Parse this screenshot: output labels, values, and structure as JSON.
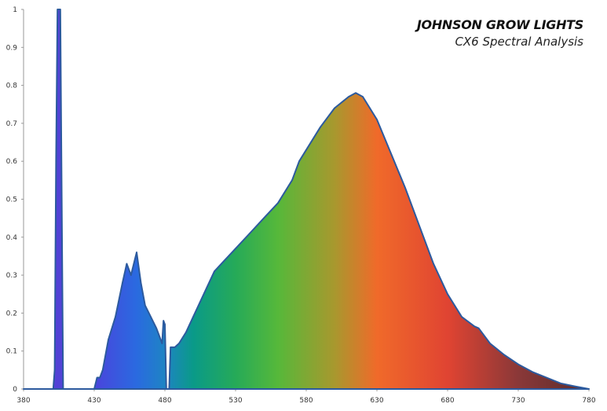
{
  "chart_data": {
    "type": "area",
    "title": "JOHNSON GROW LIGHTS",
    "subtitle": "CX6 Spectral Analysis",
    "xlabel": "",
    "ylabel": "",
    "xlim": [
      380,
      780
    ],
    "ylim": [
      0,
      1
    ],
    "x_ticks": [
      "380",
      "430",
      "480",
      "530",
      "580",
      "630",
      "680",
      "730",
      "780"
    ],
    "y_ticks": [
      "0",
      "0.1",
      "0.2",
      "0.3",
      "0.4",
      "0.5",
      "0.6",
      "0.7",
      "0.8",
      "0.9",
      "1"
    ],
    "grid": false,
    "legend": "none",
    "fill": "spectral gradient",
    "outline_color": "#2c5a9e",
    "series": [
      {
        "x": [
          380,
          401,
          402,
          403,
          404,
          406,
          407,
          408,
          430,
          432,
          434,
          436,
          440,
          445,
          450,
          453,
          456,
          458,
          460,
          463,
          466,
          470,
          474,
          478,
          479,
          480,
          481,
          483,
          484,
          487,
          490,
          495,
          500,
          505,
          510,
          515,
          520,
          530,
          540,
          550,
          560,
          570,
          575,
          580,
          590,
          600,
          610,
          615,
          620,
          625,
          630,
          640,
          650,
          660,
          670,
          680,
          690,
          699,
          702,
          710,
          720,
          730,
          740,
          750,
          760,
          770,
          780
        ],
        "y": [
          0,
          0,
          0.05,
          0.6,
          1.0,
          1.0,
          0.5,
          0,
          0,
          0.03,
          0.03,
          0.05,
          0.13,
          0.19,
          0.28,
          0.33,
          0.3,
          0.33,
          0.36,
          0.28,
          0.22,
          0.19,
          0.16,
          0.12,
          0.18,
          0.17,
          0,
          0,
          0.11,
          0.11,
          0.12,
          0.15,
          0.19,
          0.23,
          0.27,
          0.31,
          0.33,
          0.37,
          0.41,
          0.45,
          0.49,
          0.55,
          0.6,
          0.63,
          0.69,
          0.74,
          0.77,
          0.78,
          0.77,
          0.74,
          0.71,
          0.62,
          0.53,
          0.43,
          0.33,
          0.25,
          0.19,
          0.165,
          0.16,
          0.12,
          0.09,
          0.065,
          0.045,
          0.03,
          0.015,
          0.007,
          0
        ]
      }
    ]
  }
}
